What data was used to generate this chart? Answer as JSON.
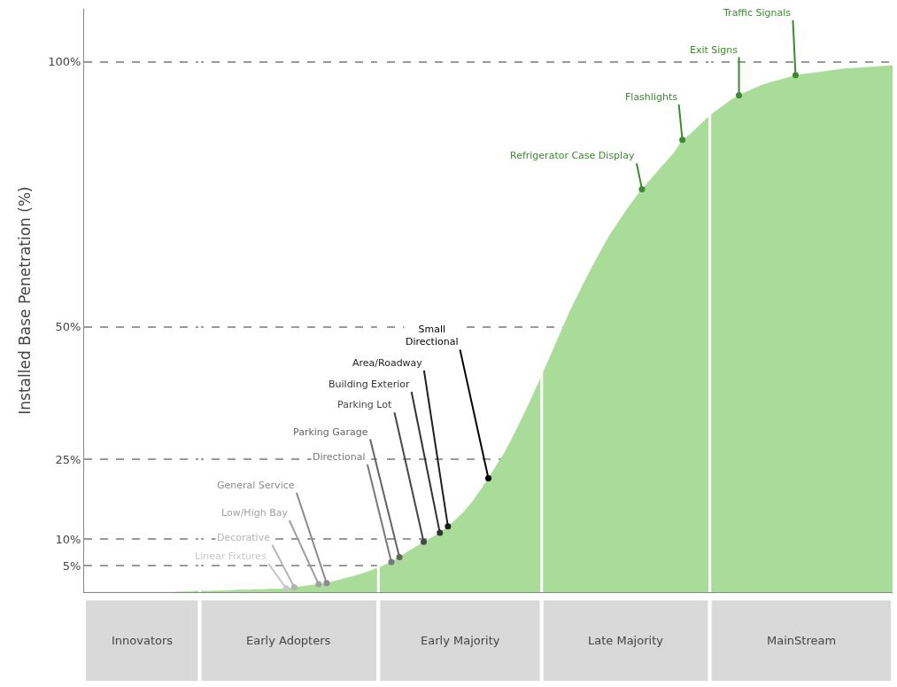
{
  "chart_data": {
    "type": "area",
    "ylabel": "Installed Base Penetration (%)",
    "categories": [
      null,
      null,
      null,
      null,
      null,
      null,
      null,
      null,
      null,
      null,
      null,
      null,
      null,
      null,
      null,
      null,
      null,
      null,
      null,
      null,
      null,
      null,
      null,
      null,
      null,
      null,
      null,
      null,
      null,
      null,
      null,
      null,
      null,
      null,
      null,
      null,
      null,
      null,
      null,
      null,
      null,
      null,
      null,
      null,
      null,
      null,
      null,
      null,
      null,
      null,
      null,
      null,
      null,
      null,
      null,
      null,
      null,
      null,
      null,
      null,
      null,
      null,
      null,
      null,
      null,
      null,
      null,
      null,
      null,
      null,
      null,
      null,
      null,
      null,
      null,
      null,
      null,
      null,
      null,
      null,
      null,
      null,
      null,
      null,
      null,
      null,
      null,
      null,
      null,
      null,
      null,
      null,
      null,
      null,
      null,
      null,
      null,
      null,
      null,
      null,
      null
    ],
    "series": [
      {
        "color": "#a8dc98",
        "values": [
          0,
          0,
          0,
          0,
          0,
          0,
          0,
          0,
          0,
          0,
          0,
          0,
          0.1,
          0.1,
          0.2,
          0.2,
          0.2,
          0.3,
          0.3,
          0.4,
          0.4,
          0.5,
          0.5,
          0.6,
          0.6,
          0.7,
          0.9,
          1.1,
          1.3,
          1.5,
          1.7,
          2.1,
          2.5,
          2.9,
          3.3,
          3.8,
          4.4,
          5.0,
          5.7,
          6.6,
          7.6,
          8.5,
          9.5,
          10.3,
          11.2,
          12.4,
          13.7,
          15.2,
          17.0,
          19.2,
          21.5,
          23.9,
          26.3,
          29.2,
          32.3,
          35.5,
          38.8,
          42.2,
          45.7,
          49.2,
          52.7,
          55.8,
          58.9,
          61.8,
          64.6,
          67.3,
          69.6,
          71.9,
          74.0,
          76.0,
          77.7,
          79.5,
          81.2,
          82.9,
          85.3,
          86.4,
          87.9,
          89.3,
          90.6,
          91.7,
          92.8,
          93.7,
          94.4,
          95.1,
          95.7,
          96.2,
          96.6,
          97.0,
          97.5,
          97.7,
          97.9,
          98.1,
          98.3,
          98.5,
          98.7,
          98.8,
          98.9,
          99.0,
          99.1,
          99.2,
          99.3
        ]
      },
      {
        "type": "scatter",
        "marker": "circle",
        "values": [
          null,
          null,
          null,
          null,
          null,
          null,
          null,
          null,
          null,
          null,
          null,
          null,
          null,
          null,
          null,
          null,
          null,
          null,
          null,
          null,
          null,
          null,
          null,
          null,
          null,
          0.7,
          0.9,
          null,
          null,
          1.5,
          1.7,
          null,
          null,
          null,
          null,
          null,
          null,
          null,
          5.7,
          6.6,
          null,
          null,
          9.5,
          null,
          11.2,
          12.4,
          null,
          null,
          null,
          null,
          21.5,
          null,
          null,
          null,
          null,
          null,
          null,
          null,
          null,
          null,
          null,
          null,
          null,
          null,
          null,
          null,
          null,
          null,
          null,
          76.0,
          null,
          null,
          null,
          null,
          85.3,
          null,
          null,
          null,
          null,
          null,
          null,
          93.7,
          null,
          null,
          null,
          null,
          null,
          null,
          97.5,
          null,
          null,
          null,
          null,
          null,
          null,
          null,
          null,
          null,
          null,
          null,
          null
        ],
        "colors": [
          null,
          null,
          null,
          null,
          null,
          null,
          null,
          null,
          null,
          null,
          null,
          null,
          null,
          null,
          null,
          null,
          null,
          null,
          null,
          null,
          null,
          null,
          null,
          null,
          null,
          "#c8c8c8",
          "#b4b4b4",
          null,
          null,
          "#a0a0a0",
          "#8c8c8c",
          null,
          null,
          null,
          null,
          null,
          null,
          null,
          "#787878",
          "#646464",
          null,
          null,
          "#464646",
          null,
          "#323232",
          "#1e1e1e",
          null,
          null,
          null,
          null,
          "#000000",
          null,
          null,
          null,
          null,
          null,
          null,
          null,
          null,
          null,
          null,
          null,
          null,
          null,
          null,
          null,
          null,
          null,
          null,
          "#3a8a2e",
          null,
          null,
          null,
          null,
          "#3a8a2e",
          null,
          null,
          null,
          null,
          null,
          null,
          "#3a8a2e",
          null,
          null,
          null,
          null,
          null,
          null,
          "#3a8a2e",
          null,
          null,
          null,
          null,
          null,
          null,
          null,
          null,
          null,
          null,
          null,
          null
        ]
      }
    ],
    "ylim": [
      0,
      110
    ],
    "yticks": [
      {
        "value": 5,
        "label": "5%"
      },
      {
        "value": 10,
        "label": "10%"
      },
      {
        "value": 25,
        "label": "25%"
      },
      {
        "value": 50,
        "label": "50%"
      },
      {
        "value": 100,
        "label": "100%"
      }
    ],
    "grid": "y",
    "tick_labels": "y",
    "annotations": [
      "Innovators",
      "Early Adopters",
      "Early Majority",
      "Late Majority",
      "MainStream",
      "Linear Fixtures",
      "Decorative",
      "Low/High Bay",
      "General Service",
      "Directional",
      "Parking Garage",
      "Parking Lot",
      "Building Exterior",
      "Area/Roadway",
      "Small\nDirectional",
      "Refrigerator Case Display",
      "Flashlights",
      "Exit Signs",
      "Traffic Signals"
    ]
  }
}
